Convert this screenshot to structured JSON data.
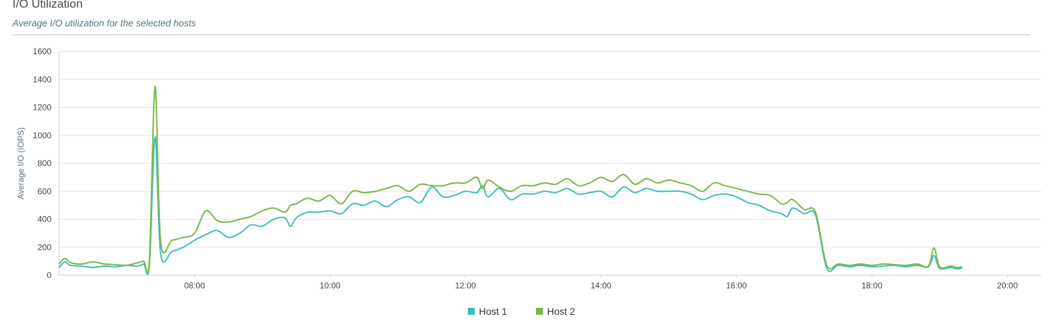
{
  "header": {
    "title": "I/O Utilization",
    "subtitle": "Average I/O utilization for the selected hosts"
  },
  "chart_data": {
    "type": "line",
    "title": "",
    "xlabel": "",
    "ylabel": "Average I/O (IOPS)",
    "ylim": [
      0,
      1600
    ],
    "yticks": [
      0,
      200,
      400,
      600,
      800,
      1000,
      1200,
      1400,
      1600
    ],
    "xlim": [
      "06:00",
      "20:30"
    ],
    "xticks": [
      "08:00",
      "10:00",
      "12:00",
      "14:00",
      "16:00",
      "18:00",
      "20:00"
    ],
    "grid": true,
    "legend": "bottom-center",
    "series": [
      {
        "name": "Host 1",
        "color": "#3dbfb8",
        "points": [
          [
            "06:00",
            55
          ],
          [
            "06:05",
            95
          ],
          [
            "06:10",
            70
          ],
          [
            "06:20",
            65
          ],
          [
            "06:30",
            55
          ],
          [
            "06:40",
            65
          ],
          [
            "06:50",
            60
          ],
          [
            "07:00",
            70
          ],
          [
            "07:10",
            65
          ],
          [
            "07:15",
            80
          ],
          [
            "07:20",
            70
          ],
          [
            "07:25",
            990
          ],
          [
            "07:30",
            150
          ],
          [
            "07:40",
            170
          ],
          [
            "07:50",
            200
          ],
          [
            "08:00",
            250
          ],
          [
            "08:10",
            290
          ],
          [
            "08:20",
            320
          ],
          [
            "08:30",
            270
          ],
          [
            "08:40",
            300
          ],
          [
            "08:50",
            360
          ],
          [
            "09:00",
            350
          ],
          [
            "09:10",
            400
          ],
          [
            "09:20",
            410
          ],
          [
            "09:25",
            350
          ],
          [
            "09:30",
            410
          ],
          [
            "09:40",
            450
          ],
          [
            "09:50",
            450
          ],
          [
            "10:00",
            460
          ],
          [
            "10:10",
            440
          ],
          [
            "10:20",
            510
          ],
          [
            "10:30",
            500
          ],
          [
            "10:40",
            530
          ],
          [
            "10:50",
            490
          ],
          [
            "11:00",
            540
          ],
          [
            "11:10",
            560
          ],
          [
            "11:20",
            520
          ],
          [
            "11:30",
            630
          ],
          [
            "11:40",
            560
          ],
          [
            "11:50",
            570
          ],
          [
            "12:00",
            600
          ],
          [
            "12:10",
            590
          ],
          [
            "12:15",
            640
          ],
          [
            "12:20",
            560
          ],
          [
            "12:30",
            620
          ],
          [
            "12:40",
            540
          ],
          [
            "12:50",
            580
          ],
          [
            "13:00",
            580
          ],
          [
            "13:10",
            600
          ],
          [
            "13:20",
            590
          ],
          [
            "13:30",
            620
          ],
          [
            "13:40",
            580
          ],
          [
            "13:50",
            590
          ],
          [
            "14:00",
            600
          ],
          [
            "14:10",
            560
          ],
          [
            "14:20",
            630
          ],
          [
            "14:30",
            590
          ],
          [
            "14:40",
            620
          ],
          [
            "14:50",
            600
          ],
          [
            "15:00",
            600
          ],
          [
            "15:10",
            600
          ],
          [
            "15:20",
            580
          ],
          [
            "15:30",
            540
          ],
          [
            "15:40",
            570
          ],
          [
            "15:50",
            580
          ],
          [
            "16:00",
            560
          ],
          [
            "16:10",
            520
          ],
          [
            "16:20",
            500
          ],
          [
            "16:30",
            460
          ],
          [
            "16:40",
            440
          ],
          [
            "16:45",
            420
          ],
          [
            "16:50",
            480
          ],
          [
            "17:00",
            440
          ],
          [
            "17:10",
            430
          ],
          [
            "17:20",
            50
          ],
          [
            "17:30",
            70
          ],
          [
            "17:40",
            60
          ],
          [
            "17:50",
            70
          ],
          [
            "18:00",
            60
          ],
          [
            "18:10",
            65
          ],
          [
            "18:20",
            70
          ],
          [
            "18:30",
            60
          ],
          [
            "18:40",
            70
          ],
          [
            "18:50",
            60
          ],
          [
            "18:55",
            140
          ],
          [
            "19:00",
            50
          ],
          [
            "19:10",
            55
          ],
          [
            "19:15",
            45
          ],
          [
            "19:20",
            50
          ]
        ]
      },
      {
        "name": "Host 2",
        "color": "#7ab648",
        "points": [
          [
            "06:00",
            80
          ],
          [
            "06:05",
            120
          ],
          [
            "06:10",
            90
          ],
          [
            "06:20",
            80
          ],
          [
            "06:30",
            95
          ],
          [
            "06:40",
            80
          ],
          [
            "06:50",
            75
          ],
          [
            "07:00",
            70
          ],
          [
            "07:10",
            90
          ],
          [
            "07:15",
            100
          ],
          [
            "07:20",
            110
          ],
          [
            "07:25",
            1350
          ],
          [
            "07:30",
            240
          ],
          [
            "07:40",
            250
          ],
          [
            "07:50",
            270
          ],
          [
            "08:00",
            300
          ],
          [
            "08:10",
            460
          ],
          [
            "08:20",
            390
          ],
          [
            "08:30",
            380
          ],
          [
            "08:40",
            400
          ],
          [
            "08:50",
            420
          ],
          [
            "09:00",
            460
          ],
          [
            "09:10",
            480
          ],
          [
            "09:20",
            450
          ],
          [
            "09:25",
            500
          ],
          [
            "09:30",
            510
          ],
          [
            "09:40",
            550
          ],
          [
            "09:50",
            530
          ],
          [
            "10:00",
            570
          ],
          [
            "10:10",
            510
          ],
          [
            "10:20",
            600
          ],
          [
            "10:30",
            590
          ],
          [
            "10:40",
            600
          ],
          [
            "10:50",
            620
          ],
          [
            "11:00",
            640
          ],
          [
            "11:10",
            600
          ],
          [
            "11:20",
            650
          ],
          [
            "11:30",
            640
          ],
          [
            "11:40",
            640
          ],
          [
            "11:50",
            660
          ],
          [
            "12:00",
            660
          ],
          [
            "12:10",
            700
          ],
          [
            "12:15",
            620
          ],
          [
            "12:20",
            680
          ],
          [
            "12:30",
            630
          ],
          [
            "12:40",
            600
          ],
          [
            "12:50",
            640
          ],
          [
            "13:00",
            640
          ],
          [
            "13:10",
            660
          ],
          [
            "13:20",
            650
          ],
          [
            "13:30",
            690
          ],
          [
            "13:40",
            640
          ],
          [
            "13:50",
            660
          ],
          [
            "14:00",
            700
          ],
          [
            "14:10",
            670
          ],
          [
            "14:20",
            720
          ],
          [
            "14:30",
            650
          ],
          [
            "14:40",
            690
          ],
          [
            "14:50",
            660
          ],
          [
            "15:00",
            680
          ],
          [
            "15:10",
            660
          ],
          [
            "15:20",
            640
          ],
          [
            "15:30",
            600
          ],
          [
            "15:40",
            660
          ],
          [
            "15:50",
            640
          ],
          [
            "16:00",
            620
          ],
          [
            "16:10",
            600
          ],
          [
            "16:20",
            580
          ],
          [
            "16:30",
            570
          ],
          [
            "16:40",
            510
          ],
          [
            "16:45",
            520
          ],
          [
            "16:50",
            540
          ],
          [
            "17:00",
            470
          ],
          [
            "17:10",
            450
          ],
          [
            "17:20",
            70
          ],
          [
            "17:30",
            80
          ],
          [
            "17:40",
            70
          ],
          [
            "17:50",
            80
          ],
          [
            "18:00",
            70
          ],
          [
            "18:10",
            80
          ],
          [
            "18:20",
            75
          ],
          [
            "18:30",
            70
          ],
          [
            "18:40",
            80
          ],
          [
            "18:50",
            65
          ],
          [
            "18:55",
            195
          ],
          [
            "19:00",
            60
          ],
          [
            "19:10",
            65
          ],
          [
            "19:15",
            55
          ],
          [
            "19:20",
            60
          ]
        ]
      }
    ]
  }
}
